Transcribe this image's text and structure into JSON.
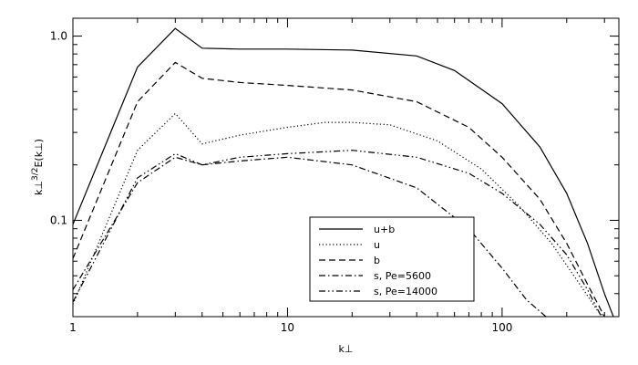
{
  "chart_data": {
    "type": "line",
    "xscale": "log",
    "yscale": "log",
    "xlim": [
      1,
      350
    ],
    "ylim": [
      0.03,
      1.25
    ],
    "xlabel": "k⊥",
    "ylabel_base": "k⊥",
    "ylabel_exp": "3/2",
    "ylabel_tail": "E(k⊥)",
    "x_ticks": [
      {
        "value": 1,
        "label": "1"
      },
      {
        "value": 10,
        "label": "10"
      },
      {
        "value": 100,
        "label": "100"
      }
    ],
    "y_ticks": [
      {
        "value": 0.1,
        "label": "0.1"
      },
      {
        "value": 1.0,
        "label": "1.0"
      }
    ],
    "grid": false,
    "legend_position": "bottom-right",
    "series": [
      {
        "name": "u+b",
        "style": "solid",
        "x": [
          1,
          2,
          3,
          4,
          6,
          10,
          20,
          40,
          60,
          100,
          150,
          200,
          250,
          300,
          330
        ],
        "y": [
          0.095,
          0.68,
          1.1,
          0.86,
          0.85,
          0.85,
          0.84,
          0.78,
          0.65,
          0.43,
          0.25,
          0.14,
          0.075,
          0.04,
          0.03
        ]
      },
      {
        "name": "u",
        "style": "dotted",
        "x": [
          1,
          2,
          3,
          4,
          6,
          10,
          15,
          20,
          30,
          50,
          80,
          120,
          170,
          230,
          280,
          300
        ],
        "y": [
          0.035,
          0.24,
          0.38,
          0.26,
          0.29,
          0.32,
          0.34,
          0.34,
          0.33,
          0.27,
          0.19,
          0.12,
          0.075,
          0.045,
          0.032,
          0.03
        ]
      },
      {
        "name": "b",
        "style": "dashed",
        "x": [
          1,
          2,
          3,
          4,
          6,
          10,
          20,
          40,
          70,
          100,
          150,
          200,
          250,
          300
        ],
        "y": [
          0.062,
          0.44,
          0.72,
          0.59,
          0.56,
          0.54,
          0.51,
          0.44,
          0.32,
          0.22,
          0.13,
          0.075,
          0.045,
          0.03
        ]
      },
      {
        "name": "s, Pe=5600",
        "style": "dashdot",
        "x": [
          1,
          2,
          3,
          4,
          6,
          10,
          20,
          40,
          70,
          100,
          130,
          160
        ],
        "y": [
          0.042,
          0.16,
          0.22,
          0.2,
          0.21,
          0.22,
          0.2,
          0.15,
          0.09,
          0.055,
          0.037,
          0.03
        ]
      },
      {
        "name": "s, Pe=14000",
        "style": "dashdotdot",
        "x": [
          1,
          2,
          3,
          4,
          6,
          10,
          20,
          40,
          70,
          100,
          150,
          200,
          250,
          290
        ],
        "y": [
          0.036,
          0.17,
          0.23,
          0.2,
          0.22,
          0.23,
          0.24,
          0.22,
          0.18,
          0.14,
          0.095,
          0.065,
          0.042,
          0.03
        ]
      }
    ]
  }
}
